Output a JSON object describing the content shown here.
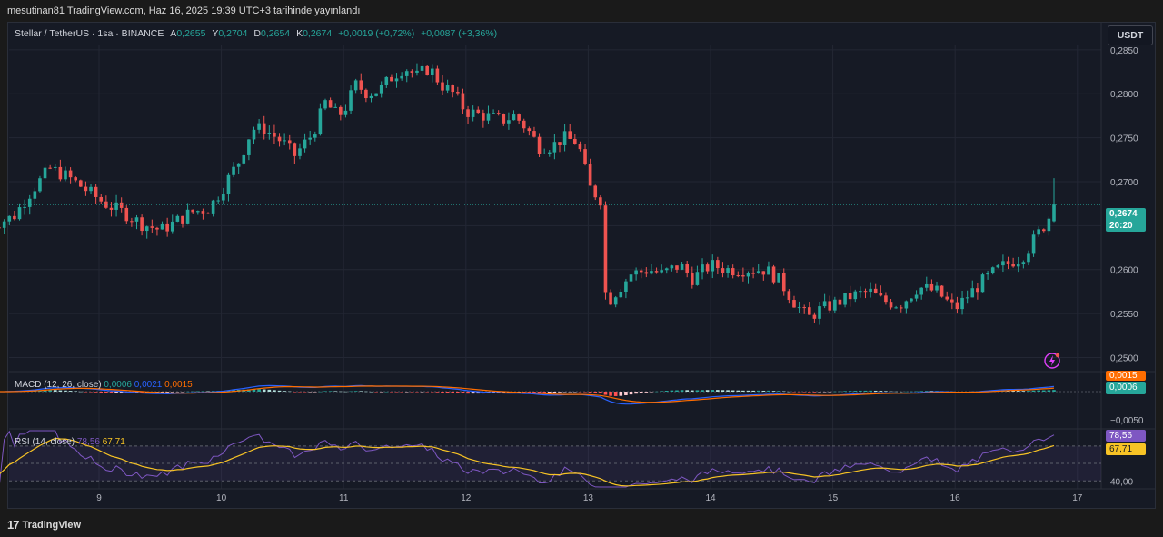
{
  "header": {
    "published": "mesutinan81 TradingView.com, Haz 16, 2025 19:39 UTC+3 tarihinde yayınlandı"
  },
  "legend": {
    "symbol": "Stellar / TetherUS · 1sa · BINANCE",
    "open_label": "A",
    "open": "0,2655",
    "high_label": "Y",
    "high": "0,2704",
    "low_label": "D",
    "low": "0,2654",
    "close_label": "K",
    "close": "0,2674",
    "change": "+0,0019 (+0,72%)",
    "change2": "+0,0087 (+3,36%)"
  },
  "currency_button": "USDT",
  "price_axis": {
    "ticks": [
      "0,2850",
      "0,2800",
      "0,2750",
      "0,2700",
      "0,2650",
      "0,2600",
      "0,2550",
      "0,2500"
    ],
    "last_price": "0,2674",
    "countdown": "20:20"
  },
  "macd": {
    "label": "MACD (12, 26, close)",
    "hist": "0,0006",
    "macd": "0,0021",
    "signal": "0,0015",
    "axis_neg": "−0,0050",
    "badge_signal": "0,0015",
    "badge_hist": "0,0006"
  },
  "rsi": {
    "label": "RSI (14, close)",
    "rsi": "78,56",
    "ma": "67,71",
    "axis_40": "40,00",
    "badge_rsi": "78,56",
    "badge_ma": "67,71"
  },
  "time_axis": [
    "9",
    "10",
    "11",
    "12",
    "13",
    "14",
    "15",
    "16",
    "17"
  ],
  "brand": "TradingView",
  "colors": {
    "up": "#26a69a",
    "down": "#ef5350",
    "macd_line": "#2962ff",
    "signal_line": "#ff6d00",
    "rsi_line": "#7e57c2",
    "rsi_ma": "#f7c325",
    "price_badge": "#26a69a"
  },
  "chart_data": {
    "type": "candlestick",
    "symbol": "Stellar / TetherUS",
    "interval": "1sa",
    "exchange": "BINANCE",
    "ylim": [
      0.2485,
      0.2855
    ],
    "x_ticks": [
      "9",
      "10",
      "11",
      "12",
      "13",
      "14",
      "15",
      "16",
      "17"
    ],
    "close_path": [
      [
        8.1,
        0.265
      ],
      [
        8.3,
        0.266
      ],
      [
        8.45,
        0.269
      ],
      [
        8.6,
        0.2715
      ],
      [
        8.75,
        0.2705
      ],
      [
        8.9,
        0.269
      ],
      [
        9.05,
        0.2675
      ],
      [
        9.2,
        0.2665
      ],
      [
        9.35,
        0.2652
      ],
      [
        9.5,
        0.2645
      ],
      [
        9.6,
        0.2652
      ],
      [
        9.75,
        0.2665
      ],
      [
        9.9,
        0.267
      ],
      [
        10.0,
        0.269
      ],
      [
        10.15,
        0.2725
      ],
      [
        10.25,
        0.276
      ],
      [
        10.35,
        0.276
      ],
      [
        10.5,
        0.2745
      ],
      [
        10.6,
        0.273
      ],
      [
        10.75,
        0.2755
      ],
      [
        10.85,
        0.279
      ],
      [
        10.95,
        0.2775
      ],
      [
        11.0,
        0.278
      ],
      [
        11.1,
        0.281
      ],
      [
        11.2,
        0.28
      ],
      [
        11.3,
        0.2805
      ],
      [
        11.4,
        0.282
      ],
      [
        11.5,
        0.283
      ],
      [
        11.6,
        0.282
      ],
      [
        11.7,
        0.283
      ],
      [
        11.8,
        0.281
      ],
      [
        11.9,
        0.28
      ],
      [
        12.0,
        0.278
      ],
      [
        12.15,
        0.2775
      ],
      [
        12.3,
        0.277
      ],
      [
        12.4,
        0.2775
      ],
      [
        12.5,
        0.276
      ],
      [
        12.6,
        0.274
      ],
      [
        12.7,
        0.274
      ],
      [
        12.8,
        0.275
      ],
      [
        12.9,
        0.2745
      ],
      [
        12.95,
        0.273
      ],
      [
        13.0,
        0.2695
      ],
      [
        13.1,
        0.268
      ],
      [
        13.12,
        0.261
      ],
      [
        13.15,
        0.256
      ],
      [
        13.2,
        0.257
      ],
      [
        13.35,
        0.2595
      ],
      [
        13.5,
        0.26
      ],
      [
        13.6,
        0.2595
      ],
      [
        13.75,
        0.2605
      ],
      [
        13.85,
        0.259
      ],
      [
        14.0,
        0.2605
      ],
      [
        14.15,
        0.26
      ],
      [
        14.3,
        0.26
      ],
      [
        14.45,
        0.26
      ],
      [
        14.55,
        0.259
      ],
      [
        14.7,
        0.256
      ],
      [
        14.8,
        0.2545
      ],
      [
        14.9,
        0.2555
      ],
      [
        15.0,
        0.256
      ],
      [
        15.15,
        0.257
      ],
      [
        15.3,
        0.2575
      ],
      [
        15.4,
        0.2565
      ],
      [
        15.55,
        0.256
      ],
      [
        15.7,
        0.258
      ],
      [
        15.85,
        0.2575
      ],
      [
        16.0,
        0.2555
      ],
      [
        16.1,
        0.257
      ],
      [
        16.25,
        0.259
      ],
      [
        16.4,
        0.2605
      ],
      [
        16.55,
        0.2615
      ],
      [
        16.65,
        0.2635
      ],
      [
        16.75,
        0.2655
      ],
      [
        16.82,
        0.2674
      ]
    ],
    "last": {
      "open": 0.2655,
      "high": 0.2704,
      "low": 0.2654,
      "close": 0.2674
    },
    "indicators": [
      {
        "name": "MACD (12, 26, close)",
        "values": {
          "histogram": 0.0006,
          "macd": 0.0021,
          "signal": 0.0015
        }
      },
      {
        "name": "RSI (14, close)",
        "values": {
          "rsi": 78.56,
          "ma": 67.71
        },
        "ref_level": 40
      }
    ]
  }
}
